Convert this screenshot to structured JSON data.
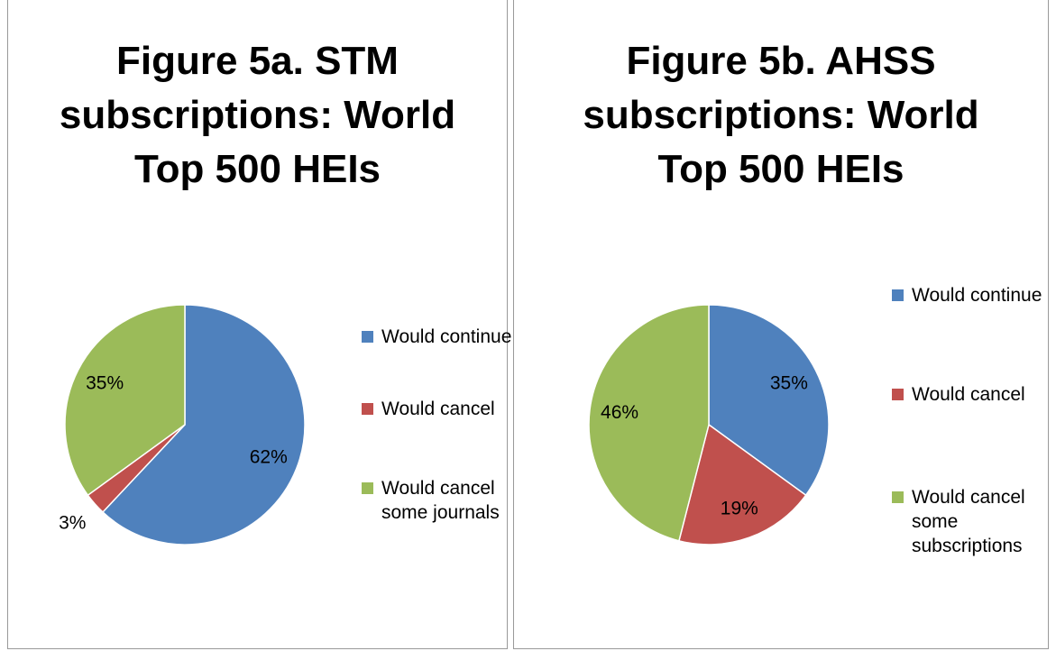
{
  "chart_data": [
    {
      "type": "pie",
      "title": [
        "Figure 5a.  STM",
        "subscriptions: World",
        "Top 500 HEIs"
      ],
      "categories": [
        "Would continue",
        "Would cancel",
        "Would cancel some journals"
      ],
      "values": [
        62,
        3,
        35
      ],
      "value_labels": [
        "62%",
        "3%",
        "35%"
      ],
      "colors": [
        "#4f81bd",
        "#c0504d",
        "#9bbb59"
      ],
      "legend": "right"
    },
    {
      "type": "pie",
      "title": [
        "Figure 5b. AHSS",
        "subscriptions: World",
        "Top 500 HEIs"
      ],
      "categories": [
        "Would continue",
        "Would cancel",
        "Would cancel some subscriptions"
      ],
      "values": [
        35,
        19,
        46
      ],
      "value_labels": [
        "35%",
        "19%",
        "46%"
      ],
      "colors": [
        "#4f81bd",
        "#c0504d",
        "#9bbb59"
      ],
      "legend": "right"
    }
  ]
}
